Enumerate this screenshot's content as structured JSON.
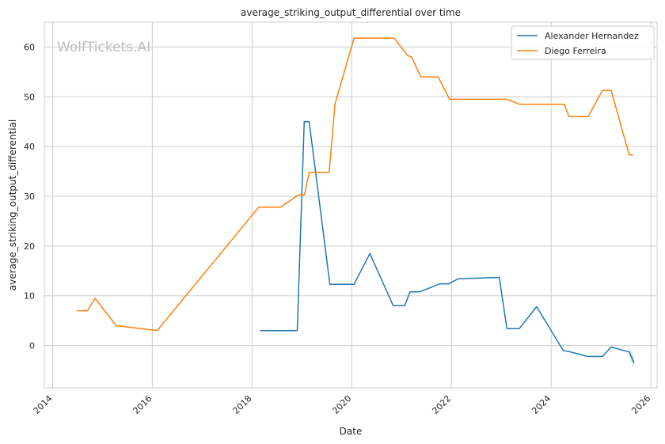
{
  "watermark": "WolfTickets.AI",
  "chart_data": {
    "type": "line",
    "title": "average_striking_output_differential over time",
    "xlabel": "Date",
    "ylabel": "average_striking_output_differential",
    "xlim": [
      "2013-11-01",
      "2026-02-15"
    ],
    "ylim": [
      -8.5,
      65
    ],
    "x_ticks": [
      "2014",
      "2016",
      "2018",
      "2020",
      "2022",
      "2024",
      "2026"
    ],
    "y_ticks": [
      0,
      10,
      20,
      30,
      40,
      50,
      60
    ],
    "grid": true,
    "legend_position": "top-right",
    "series": [
      {
        "name": "Alexander Hernandez",
        "color": "#1f77b4",
        "points": [
          [
            "2018-03-01",
            3.0
          ],
          [
            "2018-11-28",
            3.0
          ],
          [
            "2019-01-18",
            45.0
          ],
          [
            "2019-02-23",
            45.0
          ],
          [
            "2019-07-25",
            12.3
          ],
          [
            "2020-01-18",
            12.3
          ],
          [
            "2020-05-13",
            18.5
          ],
          [
            "2020-10-31",
            8.0
          ],
          [
            "2021-01-23",
            8.0
          ],
          [
            "2021-03-03",
            10.8
          ],
          [
            "2021-05-15",
            10.8
          ],
          [
            "2021-10-09",
            12.4
          ],
          [
            "2021-12-11",
            12.4
          ],
          [
            "2022-02-19",
            13.4
          ],
          [
            "2022-12-17",
            13.7
          ],
          [
            "2023-02-11",
            3.4
          ],
          [
            "2023-05-13",
            3.4
          ],
          [
            "2023-09-16",
            7.8
          ],
          [
            "2024-03-30",
            -1.0
          ],
          [
            "2024-05-11",
            -1.2
          ],
          [
            "2024-09-21",
            -2.2
          ],
          [
            "2025-01-11",
            -2.2
          ],
          [
            "2025-03-15",
            -0.3
          ],
          [
            "2025-07-26",
            -1.3
          ],
          [
            "2025-08-30",
            -3.5
          ]
        ]
      },
      {
        "name": "Diego Ferreira",
        "color": "#ff7f0e",
        "points": [
          [
            "2014-06-28",
            7.0
          ],
          [
            "2014-09-13",
            7.0
          ],
          [
            "2014-11-08",
            9.5
          ],
          [
            "2015-04-11",
            4.0
          ],
          [
            "2016-02-06",
            3.0
          ],
          [
            "2018-02-18",
            27.8
          ],
          [
            "2018-07-28",
            27.8
          ],
          [
            "2018-12-08",
            30.3
          ],
          [
            "2019-01-19",
            30.3
          ],
          [
            "2019-02-23",
            34.8
          ],
          [
            "2019-07-20",
            34.8
          ],
          [
            "2019-08-31",
            48.5
          ],
          [
            "2020-01-18",
            61.8
          ],
          [
            "2020-11-07",
            61.8
          ],
          [
            "2021-02-13",
            58.3
          ],
          [
            "2021-03-13",
            58.0
          ],
          [
            "2021-05-22",
            54.0
          ],
          [
            "2021-09-25",
            54.0
          ],
          [
            "2021-12-18",
            49.5
          ],
          [
            "2023-02-11",
            49.5
          ],
          [
            "2023-05-13",
            48.5
          ],
          [
            "2024-04-06",
            48.5
          ],
          [
            "2024-05-11",
            46.0
          ],
          [
            "2024-09-28",
            46.0
          ],
          [
            "2025-01-11",
            51.3
          ],
          [
            "2025-03-15",
            51.3
          ],
          [
            "2025-07-26",
            38.3
          ],
          [
            "2025-08-23",
            38.3
          ]
        ]
      }
    ]
  }
}
